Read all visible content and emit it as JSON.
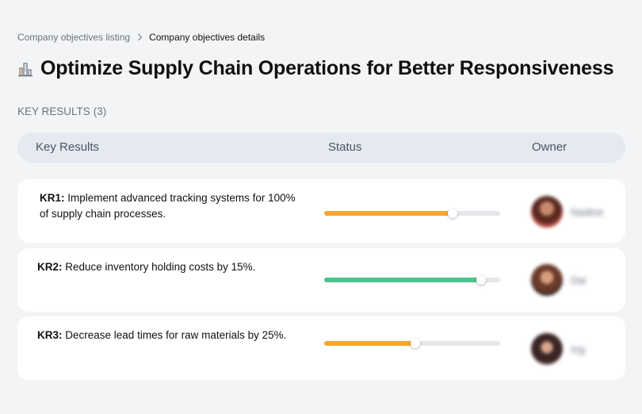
{
  "breadcrumb": {
    "parent": "Company objectives listing",
    "current": "Company objectives details"
  },
  "objective": {
    "icon": "building-chart-icon",
    "title": "Optimize Supply Chain Operations for Better Responsiveness"
  },
  "key_results_section": {
    "label": "KEY RESULTS",
    "count": "(3)"
  },
  "table": {
    "headers": {
      "key_results": "Key Results",
      "status": "Status",
      "owner": "Owner"
    },
    "rows": [
      {
        "id": "KR1:",
        "text": " Implement advanced tracking systems for 100% of supply chain processes.",
        "progress": 0.73,
        "progress_color": "#f7a531",
        "owner": "Nadine"
      },
      {
        "id": "KR2:",
        "text": " Reduce inventory holding costs by 15%.",
        "progress": 0.89,
        "progress_color": "#4fc28a",
        "owner": "Dai"
      },
      {
        "id": "KR3:",
        "text": " Decrease lead times for raw materials by 25%.",
        "progress": 0.52,
        "progress_color": "#f7a531",
        "owner": "Ing"
      }
    ]
  }
}
